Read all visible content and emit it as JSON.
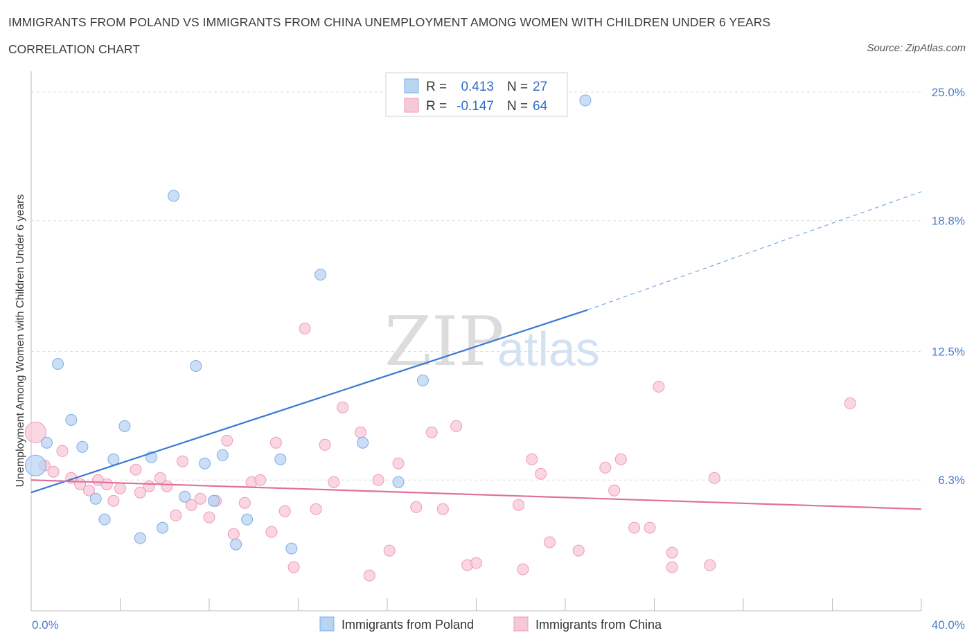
{
  "header": {
    "title": "IMMIGRANTS FROM POLAND VS IMMIGRANTS FROM CHINA UNEMPLOYMENT AMONG WOMEN WITH CHILDREN UNDER 6 YEARS",
    "subtitle": "CORRELATION CHART",
    "source": "Source: ZipAtlas.com"
  },
  "watermark": {
    "zip": "ZIP",
    "atlas": "atlas"
  },
  "legend_box": {
    "rows": [
      {
        "r_label": "R =",
        "r_value": "0.413",
        "n_label": "N =",
        "n_value": "27"
      },
      {
        "r_label": "R =",
        "r_value": "-0.147",
        "n_label": "N =",
        "n_value": "64"
      }
    ]
  },
  "chart_data": {
    "type": "scatter",
    "title": "IMMIGRANTS FROM POLAND VS IMMIGRANTS FROM CHINA UNEMPLOYMENT AMONG WOMEN WITH CHILDREN UNDER 6 YEARS",
    "xlabel": "",
    "ylabel": "Unemployment Among Women with Children Under 6 years",
    "xlim": [
      0,
      40
    ],
    "ylim": [
      0,
      26
    ],
    "x_tick_labels": [
      "0.0%",
      "40.0%"
    ],
    "y_ticks": [
      6.3,
      12.5,
      18.8,
      25.0
    ],
    "y_tick_labels": [
      "6.3%",
      "12.5%",
      "18.8%",
      "25.0%"
    ],
    "grid": "horizontal dashed",
    "legend_position": "bottom-center",
    "series": [
      {
        "name": "Immigrants from Poland",
        "color": "#7aaee8",
        "fill": "#b9d3f3",
        "R": 0.413,
        "N": 27,
        "trend": {
          "x0": 0,
          "y0": 5.7,
          "x1": 25,
          "y1": 14.5,
          "dashed_to_x": 40,
          "dashed_to_y": 20.2
        },
        "points": [
          {
            "x": 0.2,
            "y": 7.0,
            "big": true
          },
          {
            "x": 0.7,
            "y": 8.1
          },
          {
            "x": 1.2,
            "y": 11.9
          },
          {
            "x": 1.8,
            "y": 9.2
          },
          {
            "x": 2.3,
            "y": 7.9
          },
          {
            "x": 2.9,
            "y": 5.4
          },
          {
            "x": 3.3,
            "y": 4.4
          },
          {
            "x": 3.7,
            "y": 7.3
          },
          {
            "x": 4.2,
            "y": 8.9
          },
          {
            "x": 4.9,
            "y": 3.5
          },
          {
            "x": 5.4,
            "y": 7.4
          },
          {
            "x": 5.9,
            "y": 4.0
          },
          {
            "x": 6.4,
            "y": 20.0
          },
          {
            "x": 6.9,
            "y": 5.5
          },
          {
            "x": 7.4,
            "y": 11.8
          },
          {
            "x": 7.8,
            "y": 7.1
          },
          {
            "x": 8.2,
            "y": 5.3
          },
          {
            "x": 8.6,
            "y": 7.5
          },
          {
            "x": 9.2,
            "y": 3.2
          },
          {
            "x": 9.7,
            "y": 4.4
          },
          {
            "x": 11.2,
            "y": 7.3
          },
          {
            "x": 11.7,
            "y": 3.0
          },
          {
            "x": 13.0,
            "y": 16.2
          },
          {
            "x": 14.9,
            "y": 8.1
          },
          {
            "x": 16.5,
            "y": 6.2
          },
          {
            "x": 17.6,
            "y": 11.1
          },
          {
            "x": 24.9,
            "y": 24.6
          }
        ]
      },
      {
        "name": "Immigrants from China",
        "color": "#ef9ab8",
        "fill": "#f7c8d8",
        "R": -0.147,
        "N": 64,
        "trend": {
          "x0": 0,
          "y0": 6.3,
          "x1": 40,
          "y1": 4.9
        },
        "points": [
          {
            "x": 0.2,
            "y": 8.6,
            "big": true
          },
          {
            "x": 0.6,
            "y": 7.0
          },
          {
            "x": 1.0,
            "y": 6.7
          },
          {
            "x": 1.4,
            "y": 7.7
          },
          {
            "x": 1.8,
            "y": 6.4
          },
          {
            "x": 2.2,
            "y": 6.1
          },
          {
            "x": 2.6,
            "y": 5.8
          },
          {
            "x": 3.0,
            "y": 6.3
          },
          {
            "x": 3.4,
            "y": 6.1
          },
          {
            "x": 3.7,
            "y": 5.3
          },
          {
            "x": 4.0,
            "y": 5.9
          },
          {
            "x": 4.7,
            "y": 6.8
          },
          {
            "x": 4.9,
            "y": 5.7
          },
          {
            "x": 5.3,
            "y": 6.0
          },
          {
            "x": 5.8,
            "y": 6.4
          },
          {
            "x": 6.1,
            "y": 6.0
          },
          {
            "x": 6.5,
            "y": 4.6
          },
          {
            "x": 6.8,
            "y": 7.2
          },
          {
            "x": 7.2,
            "y": 5.1
          },
          {
            "x": 7.6,
            "y": 5.4
          },
          {
            "x": 8.0,
            "y": 4.5
          },
          {
            "x": 8.3,
            "y": 5.3
          },
          {
            "x": 8.8,
            "y": 8.2
          },
          {
            "x": 9.1,
            "y": 3.7
          },
          {
            "x": 9.6,
            "y": 5.2
          },
          {
            "x": 9.9,
            "y": 6.2
          },
          {
            "x": 10.3,
            "y": 6.3
          },
          {
            "x": 10.8,
            "y": 3.8
          },
          {
            "x": 11.0,
            "y": 8.1
          },
          {
            "x": 11.4,
            "y": 4.8
          },
          {
            "x": 11.8,
            "y": 2.1
          },
          {
            "x": 12.3,
            "y": 13.6
          },
          {
            "x": 12.8,
            "y": 4.9
          },
          {
            "x": 13.2,
            "y": 8.0
          },
          {
            "x": 13.6,
            "y": 6.2
          },
          {
            "x": 14.0,
            "y": 9.8
          },
          {
            "x": 14.8,
            "y": 8.6
          },
          {
            "x": 15.2,
            "y": 1.7
          },
          {
            "x": 15.6,
            "y": 6.3
          },
          {
            "x": 16.1,
            "y": 2.9
          },
          {
            "x": 16.5,
            "y": 7.1
          },
          {
            "x": 17.3,
            "y": 5.0
          },
          {
            "x": 18.0,
            "y": 8.6
          },
          {
            "x": 18.5,
            "y": 4.9
          },
          {
            "x": 19.1,
            "y": 8.9
          },
          {
            "x": 19.6,
            "y": 2.2
          },
          {
            "x": 20.0,
            "y": 2.3
          },
          {
            "x": 21.9,
            "y": 5.1
          },
          {
            "x": 22.1,
            "y": 2.0
          },
          {
            "x": 22.5,
            "y": 7.3
          },
          {
            "x": 22.9,
            "y": 6.6
          },
          {
            "x": 23.3,
            "y": 3.3
          },
          {
            "x": 24.6,
            "y": 2.9
          },
          {
            "x": 25.8,
            "y": 6.9
          },
          {
            "x": 26.2,
            "y": 5.8
          },
          {
            "x": 26.5,
            "y": 7.3
          },
          {
            "x": 27.1,
            "y": 4.0
          },
          {
            "x": 27.8,
            "y": 4.0
          },
          {
            "x": 28.2,
            "y": 10.8
          },
          {
            "x": 28.8,
            "y": 2.8
          },
          {
            "x": 28.8,
            "y": 2.1
          },
          {
            "x": 30.5,
            "y": 2.2
          },
          {
            "x": 30.7,
            "y": 6.4
          },
          {
            "x": 36.8,
            "y": 10.0
          }
        ]
      }
    ]
  }
}
